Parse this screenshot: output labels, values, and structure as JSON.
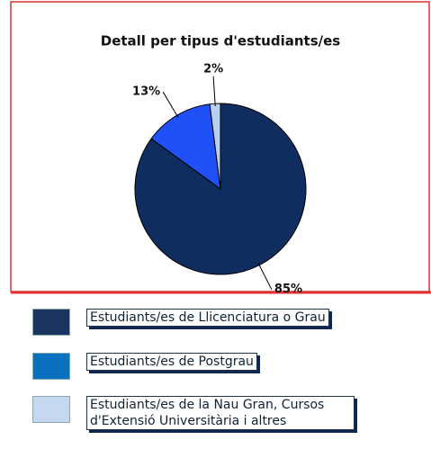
{
  "chart_data": {
    "type": "pie",
    "title": "Detall per tipus d'estudiants/es",
    "categories": [
      "Estudiants/es de Llicenciatura o Grau",
      "Estudiants/es de Postgrau",
      "Estudiants/es de la Nau Gran, Cursos d'Extensió Universitària i altres"
    ],
    "values": [
      85,
      13,
      2
    ],
    "value_labels": [
      "85%",
      "13%",
      "2%"
    ],
    "colors": [
      "#0f2d5e",
      "#2050f8",
      "#b8d0f0"
    ],
    "legend_colors": [
      "#1a3560",
      "#0a70c0",
      "#c5d8f0"
    ]
  }
}
